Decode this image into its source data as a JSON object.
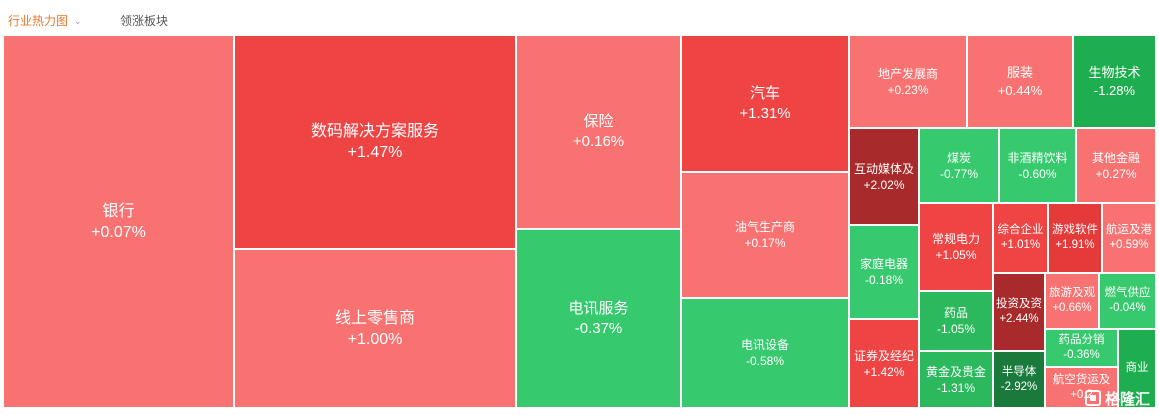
{
  "tabs": {
    "active": "行业热力图",
    "second": "领涨板块"
  },
  "watermark": "格隆汇",
  "colors": {
    "pos_light": "#f87272",
    "pos_mid": "#ef4444",
    "pos_strong": "#e53a3a",
    "pos_dark": "#a82a2a",
    "neg_light": "#36c96d",
    "neg_mid": "#2cb85c",
    "neg_dark": "#1f9446"
  },
  "tiles": [
    {
      "name": "银行",
      "change": "+0.07%"
    },
    {
      "name": "数码解决方案服务",
      "change": "+1.47%"
    },
    {
      "name": "线上零售商",
      "change": "+1.00%"
    },
    {
      "name": "保险",
      "change": "+0.16%"
    },
    {
      "name": "电讯服务",
      "change": "-0.37%"
    },
    {
      "name": "汽车",
      "change": "+1.31%"
    },
    {
      "name": "油气生产商",
      "change": "+0.17%"
    },
    {
      "name": "电讯设备",
      "change": "-0.58%"
    },
    {
      "name": "地产发展商",
      "change": "+0.23%"
    },
    {
      "name": "服装",
      "change": "+0.44%"
    },
    {
      "name": "生物技术",
      "change": "-1.28%"
    },
    {
      "name": "互动媒体及",
      "change": "+2.02%"
    },
    {
      "name": "煤炭",
      "change": "-0.77%"
    },
    {
      "name": "非酒精饮料",
      "change": "-0.60%"
    },
    {
      "name": "其他金融",
      "change": "+0.27%"
    },
    {
      "name": "家庭电器",
      "change": "-0.18%"
    },
    {
      "name": "常规电力",
      "change": "+1.05%"
    },
    {
      "name": "综合企业",
      "change": "+1.01%"
    },
    {
      "name": "游戏软件",
      "change": "+1.91%"
    },
    {
      "name": "航运及港",
      "change": "+0.59%"
    },
    {
      "name": "药品",
      "change": "-1.05%"
    },
    {
      "name": "投资及资",
      "change": "+2.44%"
    },
    {
      "name": "旅游及观",
      "change": "+0.66%"
    },
    {
      "name": "燃气供应",
      "change": "-0.04%"
    },
    {
      "name": "证券及经纪",
      "change": "+1.42%"
    },
    {
      "name": "黄金及贵金",
      "change": "-1.31%"
    },
    {
      "name": "半导体",
      "change": "-2.92%"
    },
    {
      "name": "药品分销",
      "change": "-0.36%"
    },
    {
      "name": "商业",
      "change": ""
    },
    {
      "name": "航空货运及",
      "change": "+0.2"
    }
  ]
}
